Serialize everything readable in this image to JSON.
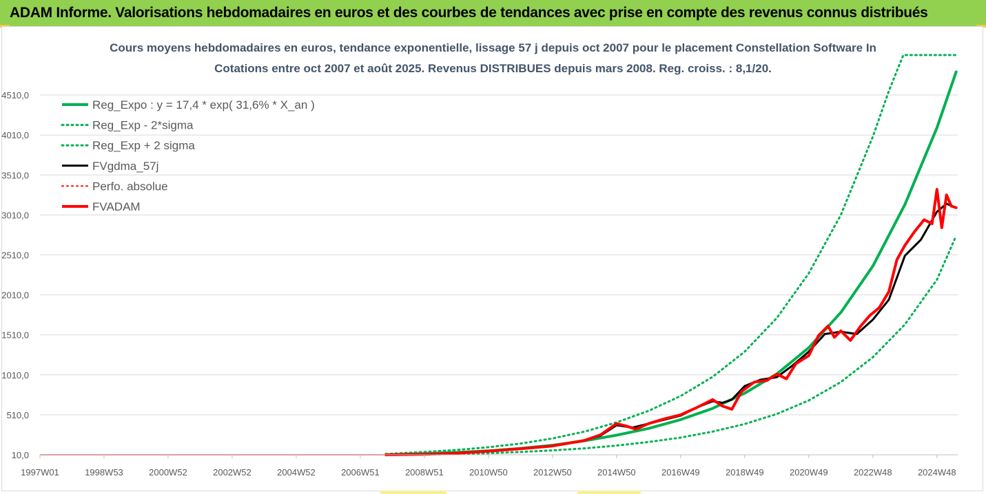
{
  "banner": {
    "title": "ADAM Informe. Valorisations hebdomadaires en euros et des courbes de tendances avec prise en compte des revenus connus distribués"
  },
  "colors": {
    "banner_bg": "#92d050",
    "trend": "#00b050",
    "fvgdma": "#000000",
    "fvadam": "#ff0000",
    "title_text": "#44546a"
  },
  "chart_data": {
    "type": "line",
    "title_line1": "Cours moyens hebdomadaires en euros, tendance exponentielle, lissage 57 j depuis oct 2007 pour le placement Constellation Software In",
    "title_line2": "Cotations entre oct 2007 et août 2025. Revenus DISTRIBUES depuis mars 2008. Reg. croiss. : 8,1/20.",
    "xlabel": "",
    "ylabel": "",
    "x_tick_labels": [
      "1997W01",
      "1998W53",
      "2000W52",
      "2002W52",
      "2004W52",
      "2006W51",
      "2008W51",
      "2010W50",
      "2012W50",
      "2014W50",
      "2016W49",
      "2018W49",
      "2020W49",
      "2022W48",
      "2024W48"
    ],
    "x_tick_years": [
      1997.0,
      1999.0,
      2001.0,
      2003.0,
      2005.0,
      2007.0,
      2009.0,
      2011.0,
      2013.0,
      2015.0,
      2017.0,
      2019.0,
      2021.0,
      2023.0,
      2025.0
    ],
    "xlim": [
      1997.0,
      2025.65
    ],
    "y_tick_labels": [
      "10,0",
      "510,0",
      "1010,0",
      "1510,0",
      "2010,0",
      "2510,0",
      "3010,0",
      "3510,0",
      "4010,0",
      "4510,0"
    ],
    "y_tick_values": [
      10,
      510,
      1010,
      1510,
      2010,
      2510,
      3010,
      3510,
      4010,
      4510
    ],
    "ylim": [
      10,
      5010
    ],
    "grid": "horizontal",
    "legend_position": "top-left",
    "legend": [
      {
        "label": "Reg_Expo : y = 17,4 * exp( 31,6% *  X_an )",
        "color": "#00b050",
        "style": "solid",
        "width": 4
      },
      {
        "label": "Reg_Exp - 2*sigma",
        "color": "#00b050",
        "style": "dotted",
        "width": 3
      },
      {
        "label": "Reg_Exp + 2 sigma",
        "color": "#00b050",
        "style": "dotted",
        "width": 3
      },
      {
        "label": "FVgdma_57j",
        "color": "#000000",
        "style": "solid",
        "width": 3
      },
      {
        "label": "Perfo. absolue",
        "color": "#ff0000",
        "style": "dotted",
        "width": 2
      },
      {
        "label": "FVADAM",
        "color": "#ff0000",
        "style": "solid",
        "width": 4
      }
    ],
    "series": [
      {
        "name": "Reg_Expo : y = 17,4 * exp( 31,6% *  X_an )",
        "x": [
          2007.8,
          2009.0,
          2010.0,
          2011.0,
          2012.0,
          2013.0,
          2014.0,
          2015.0,
          2016.0,
          2017.0,
          2018.0,
          2019.0,
          2020.0,
          2021.0,
          2022.0,
          2023.0,
          2024.0,
          2025.0,
          2025.6
        ],
        "values": [
          10,
          25,
          40,
          60,
          90,
          130,
          185,
          255,
          340,
          450,
          590,
          780,
          1020,
          1350,
          1790,
          2370,
          3140,
          4100,
          4800
        ]
      },
      {
        "name": "Reg_Exp - 2*sigma",
        "x": [
          2007.8,
          2009.0,
          2010.0,
          2011.0,
          2012.0,
          2013.0,
          2014.0,
          2015.0,
          2016.0,
          2017.0,
          2018.0,
          2019.0,
          2020.0,
          2021.0,
          2022.0,
          2023.0,
          2024.0,
          2025.0,
          2025.6
        ],
        "values": [
          5,
          12,
          20,
          30,
          45,
          65,
          90,
          125,
          170,
          225,
          300,
          395,
          520,
          690,
          920,
          1230,
          1640,
          2200,
          2750
        ]
      },
      {
        "name": "Reg_Exp + 2 sigma",
        "x": [
          2007.8,
          2009.0,
          2010.0,
          2011.0,
          2012.0,
          2013.0,
          2014.0,
          2015.0,
          2016.0,
          2017.0,
          2018.0,
          2019.0,
          2020.0,
          2021.0,
          2022.0,
          2023.0,
          2023.5,
          2023.95,
          2025.6
        ],
        "values": [
          20,
          45,
          70,
          105,
          150,
          215,
          300,
          415,
          560,
          745,
          985,
          1300,
          1720,
          2280,
          3010,
          3990,
          4560,
          5010,
          5010
        ]
      },
      {
        "name": "FVgdma_57j",
        "x": [
          2007.8,
          2009.0,
          2010.0,
          2011.0,
          2012.0,
          2013.0,
          2014.0,
          2014.5,
          2015.0,
          2015.5,
          2016.0,
          2016.5,
          2017.0,
          2017.5,
          2018.0,
          2018.3,
          2018.6,
          2019.0,
          2019.5,
          2020.0,
          2020.5,
          2021.0,
          2021.5,
          2022.0,
          2022.5,
          2023.0,
          2023.5,
          2024.0,
          2024.5,
          2025.0,
          2025.3,
          2025.6
        ],
        "values": [
          10,
          15,
          30,
          55,
          85,
          120,
          190,
          250,
          380,
          350,
          400,
          450,
          500,
          600,
          680,
          660,
          700,
          870,
          950,
          980,
          1130,
          1300,
          1520,
          1550,
          1520,
          1700,
          1950,
          2500,
          2700,
          3050,
          3150,
          3100
        ]
      },
      {
        "name": "FVADAM",
        "x": [
          2007.8,
          2009.0,
          2010.0,
          2011.0,
          2012.0,
          2013.0,
          2014.0,
          2014.5,
          2015.0,
          2015.3,
          2015.6,
          2016.0,
          2016.5,
          2017.0,
          2017.5,
          2018.0,
          2018.3,
          2018.6,
          2018.9,
          2019.3,
          2019.7,
          2020.0,
          2020.3,
          2020.6,
          2021.0,
          2021.3,
          2021.6,
          2021.8,
          2022.0,
          2022.3,
          2022.6,
          2022.9,
          2023.2,
          2023.5,
          2023.75,
          2024.0,
          2024.3,
          2024.6,
          2024.85,
          2025.0,
          2025.15,
          2025.3,
          2025.45,
          2025.6
        ],
        "values": [
          10,
          15,
          30,
          55,
          85,
          120,
          190,
          260,
          400,
          370,
          330,
          400,
          460,
          510,
          600,
          700,
          620,
          580,
          800,
          920,
          940,
          1020,
          960,
          1150,
          1250,
          1500,
          1620,
          1480,
          1560,
          1440,
          1610,
          1750,
          1850,
          2050,
          2450,
          2630,
          2800,
          2950,
          2900,
          3330,
          2850,
          3260,
          3120,
          3100
        ]
      }
    ]
  }
}
